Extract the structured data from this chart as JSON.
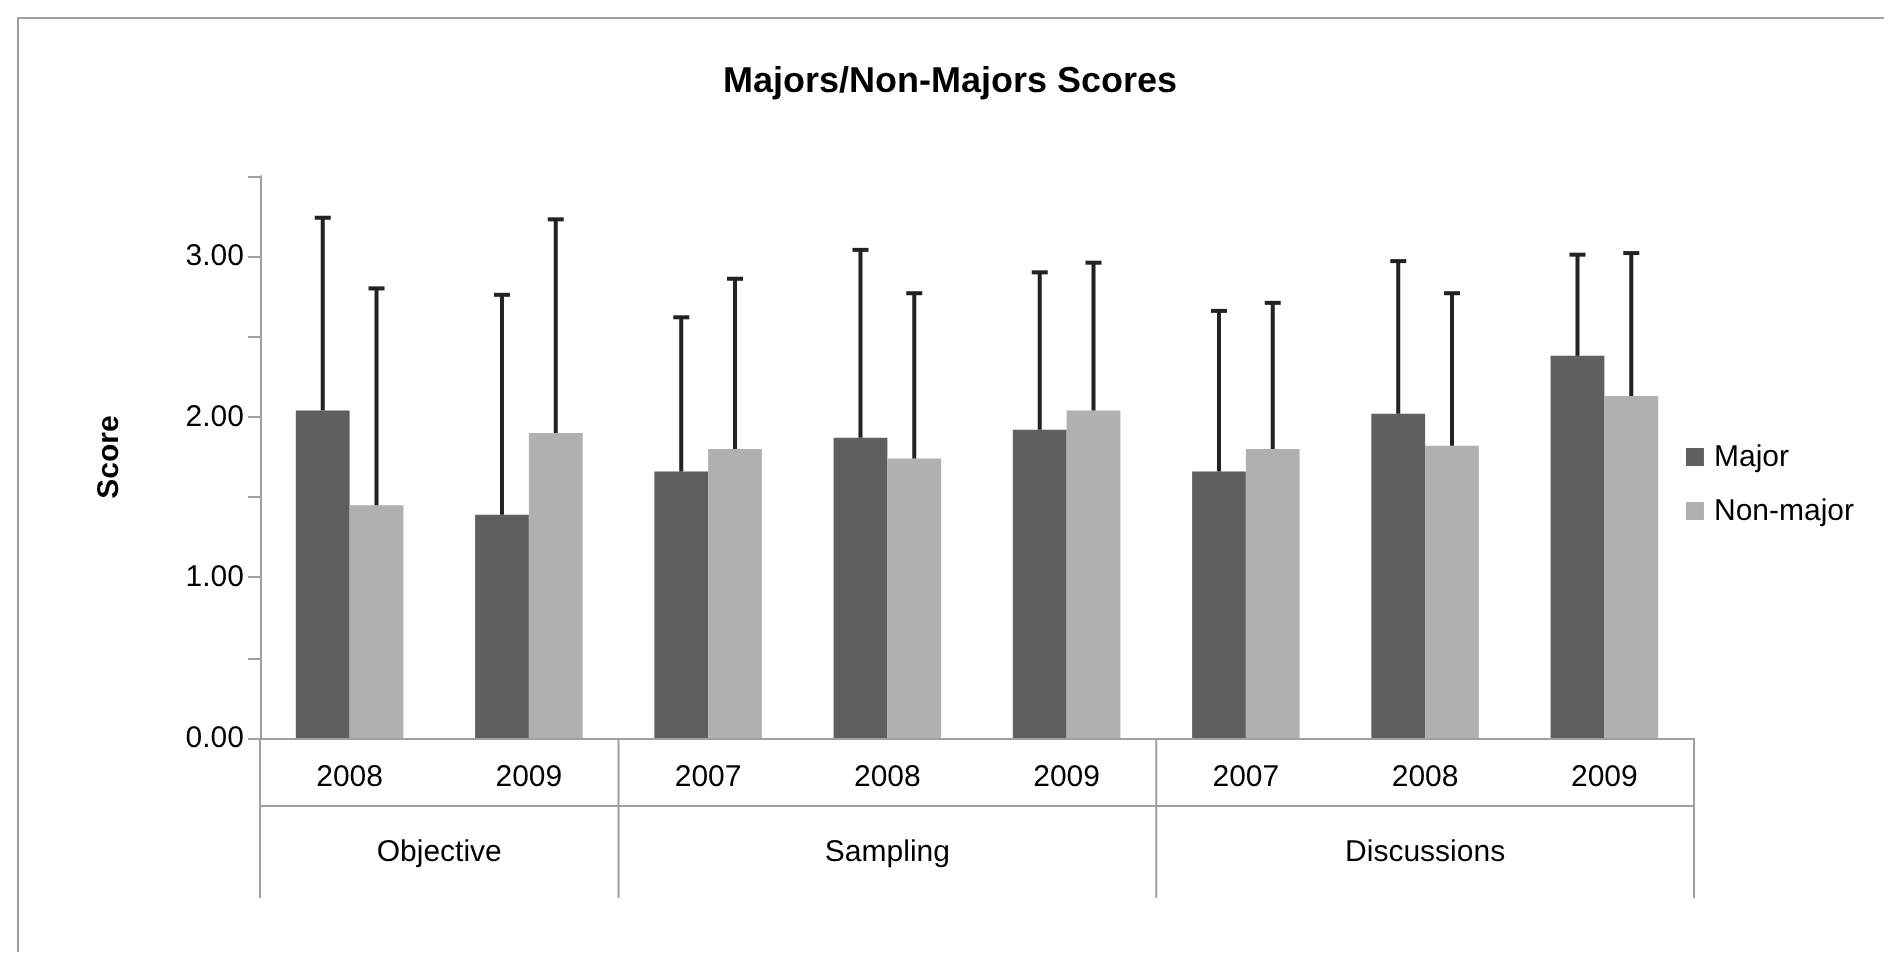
{
  "chart_data": {
    "type": "bar",
    "title": "Majors/Non-Majors Scores",
    "ylabel": "Score",
    "categories": [
      "2008",
      "2009",
      "2007",
      "2008",
      "2009",
      "2007",
      "2008",
      "2009"
    ],
    "annotations": [
      "Objective",
      "Sampling",
      "Discussions"
    ],
    "series": [
      {
        "name": "Major",
        "color": "#5f5f5f",
        "values": [
          2.04,
          1.39,
          1.66,
          1.87,
          1.92,
          1.66,
          2.02,
          2.38
        ],
        "errors": [
          [
            2.04,
            3.24
          ],
          [
            1.39,
            2.76
          ],
          [
            1.66,
            2.62
          ],
          [
            1.87,
            3.04
          ],
          [
            1.92,
            2.9
          ],
          [
            1.66,
            2.66
          ],
          [
            2.02,
            2.97
          ],
          [
            2.38,
            3.01
          ]
        ]
      },
      {
        "name": "Non-major",
        "color": "#b0b0b0",
        "values": [
          1.45,
          1.9,
          1.8,
          1.74,
          2.04,
          1.8,
          1.82,
          2.13
        ],
        "errors": [
          [
            1.45,
            2.8
          ],
          [
            1.9,
            3.23
          ],
          [
            1.8,
            2.86
          ],
          [
            1.74,
            2.77
          ],
          [
            2.04,
            2.96
          ],
          [
            1.8,
            2.71
          ],
          [
            1.82,
            2.77
          ],
          [
            2.13,
            3.02
          ]
        ]
      }
    ],
    "ylim": [
      0,
      3.5
    ],
    "yticks": [
      {
        "value": 0,
        "label": "0.00"
      },
      {
        "value": 0.5,
        "label": null
      },
      {
        "value": 1,
        "label": "1.00"
      },
      {
        "value": 1.5,
        "label": null
      },
      {
        "value": 2,
        "label": "2.00"
      },
      {
        "value": 2.5,
        "label": null
      },
      {
        "value": 3,
        "label": "3.00"
      },
      {
        "value": 3.5,
        "label": null
      }
    ],
    "grid": false,
    "legend": "right"
  }
}
